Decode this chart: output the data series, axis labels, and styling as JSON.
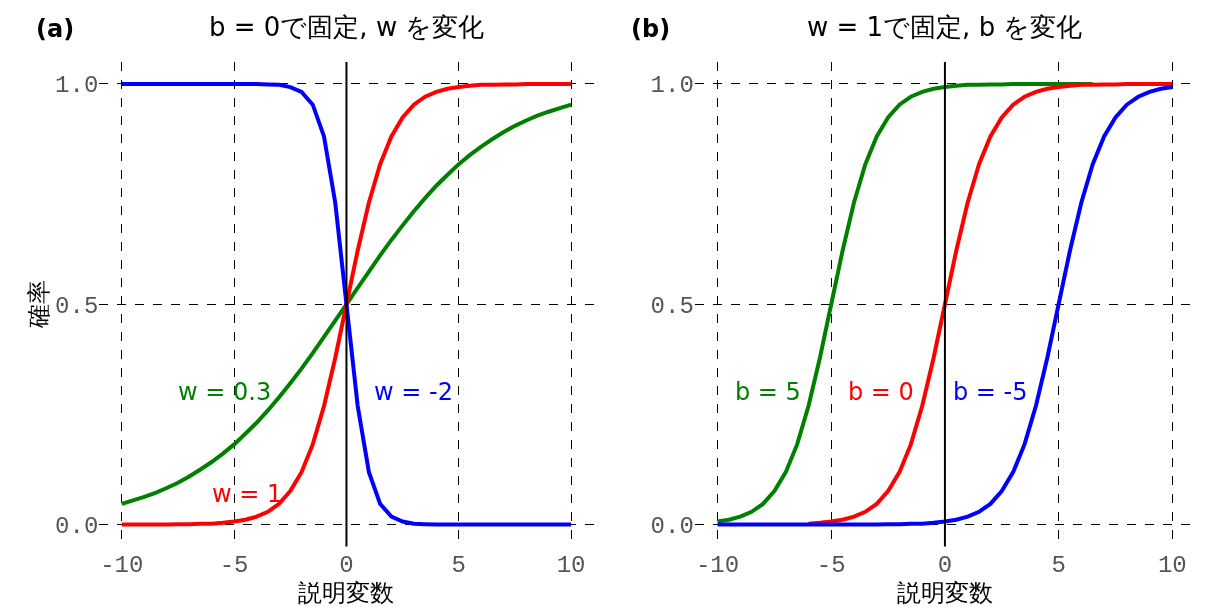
{
  "chart_data": [
    {
      "type": "line",
      "title": "b = 0で固定, w を変化",
      "xlabel": "説明変数",
      "ylabel": "確率",
      "annotations": [
        "(a)"
      ],
      "x": [
        -10,
        -9.5,
        -9,
        -8.5,
        -8,
        -7.5,
        -7,
        -6.5,
        -6,
        -5.5,
        -5,
        -4.5,
        -4,
        -3.5,
        -3,
        -2.5,
        -2,
        -1.5,
        -1,
        -0.5,
        0,
        0.5,
        1,
        1.5,
        2,
        2.5,
        3,
        3.5,
        4,
        4.5,
        5,
        5.5,
        6,
        6.5,
        7,
        7.5,
        8,
        8.5,
        9,
        9.5,
        10
      ],
      "series": [
        {
          "name": "w = 0.3",
          "color": "#008000",
          "values": [
            0.047,
            0.055,
            0.063,
            0.072,
            0.083,
            0.095,
            0.109,
            0.125,
            0.142,
            0.161,
            0.182,
            0.206,
            0.231,
            0.259,
            0.289,
            0.321,
            0.354,
            0.389,
            0.426,
            0.463,
            0.5,
            0.537,
            0.574,
            0.611,
            0.646,
            0.679,
            0.711,
            0.741,
            0.769,
            0.794,
            0.818,
            0.839,
            0.858,
            0.875,
            0.891,
            0.905,
            0.917,
            0.928,
            0.937,
            0.945,
            0.953
          ]
        },
        {
          "name": "w = 1",
          "color": "#ff0000",
          "values": [
            0.0,
            0.0,
            0.0,
            0.0,
            0.0,
            0.001,
            0.001,
            0.002,
            0.002,
            0.004,
            0.007,
            0.011,
            0.018,
            0.029,
            0.047,
            0.076,
            0.119,
            0.182,
            0.269,
            0.378,
            0.5,
            0.622,
            0.731,
            0.818,
            0.881,
            0.924,
            0.953,
            0.971,
            0.982,
            0.989,
            0.993,
            0.996,
            0.998,
            0.998,
            0.999,
            0.999,
            1.0,
            1.0,
            1.0,
            1.0,
            1.0
          ]
        },
        {
          "name": "w = -2",
          "color": "#0000ff",
          "values": [
            1.0,
            1.0,
            1.0,
            1.0,
            1.0,
            1.0,
            1.0,
            1.0,
            1.0,
            1.0,
            1.0,
            1.0,
            1.0,
            0.999,
            0.998,
            0.993,
            0.982,
            0.953,
            0.881,
            0.731,
            0.5,
            0.269,
            0.119,
            0.047,
            0.018,
            0.007,
            0.002,
            0.001,
            0.0,
            0.0,
            0.0,
            0.0,
            0.0,
            0.0,
            0.0,
            0.0,
            0.0,
            0.0,
            0.0,
            0.0,
            0.0
          ]
        }
      ],
      "xlim": [
        -11,
        11
      ],
      "ylim": [
        -0.05,
        1.05
      ],
      "xticks": [
        -10,
        -5,
        0,
        5,
        10
      ],
      "yticks": [
        {
          "value": 0,
          "label": "0.0"
        },
        {
          "value": 0.5,
          "label": "0.5"
        },
        {
          "value": 1,
          "label": "1.0"
        }
      ],
      "grid": true,
      "line_style": "solid",
      "ref_lines": [
        {
          "axis": "x",
          "value": 0,
          "color": "#000000"
        }
      ]
    },
    {
      "type": "line",
      "title": "w = 1で固定, b を変化",
      "xlabel": "説明変数",
      "annotations": [
        "(b)"
      ],
      "x": [
        -10,
        -9.5,
        -9,
        -8.5,
        -8,
        -7.5,
        -7,
        -6.5,
        -6,
        -5.5,
        -5,
        -4.5,
        -4,
        -3.5,
        -3,
        -2.5,
        -2,
        -1.5,
        -1,
        -0.5,
        0,
        0.5,
        1,
        1.5,
        2,
        2.5,
        3,
        3.5,
        4,
        4.5,
        5,
        5.5,
        6,
        6.5,
        7,
        7.5,
        8,
        8.5,
        9,
        9.5,
        10
      ],
      "series": [
        {
          "name": "b = 5",
          "color": "#008000",
          "values": [
            0.007,
            0.011,
            0.018,
            0.029,
            0.047,
            0.076,
            0.119,
            0.182,
            0.269,
            0.378,
            0.5,
            0.622,
            0.731,
            0.818,
            0.881,
            0.924,
            0.953,
            0.971,
            0.982,
            0.989,
            0.993,
            0.996,
            0.998,
            0.998,
            0.999,
            0.999,
            1.0,
            1.0,
            1.0,
            1.0,
            1.0,
            1.0,
            1.0,
            1.0,
            null,
            null,
            null,
            null,
            null,
            null,
            null
          ]
        },
        {
          "name": "b = 0",
          "color": "#ff0000",
          "values": [
            null,
            null,
            null,
            null,
            null,
            null,
            null,
            null,
            0.002,
            0.004,
            0.007,
            0.011,
            0.018,
            0.029,
            0.047,
            0.076,
            0.119,
            0.182,
            0.269,
            0.378,
            0.5,
            0.622,
            0.731,
            0.818,
            0.881,
            0.924,
            0.953,
            0.971,
            0.982,
            0.989,
            0.993,
            0.996,
            0.998,
            0.998,
            0.999,
            0.999,
            1.0,
            1.0,
            1.0,
            1.0,
            1.0
          ]
        },
        {
          "name": "b = -5",
          "color": "#0000ff",
          "values": [
            0.0,
            0.0,
            0.0,
            0.0,
            0.0,
            0.0,
            0.0,
            0.0,
            0.0,
            0.0,
            0.0,
            0.0,
            0.0,
            0.0,
            0.0,
            0.001,
            0.001,
            0.002,
            0.002,
            0.004,
            0.007,
            0.011,
            0.018,
            0.029,
            0.047,
            0.076,
            0.119,
            0.182,
            0.269,
            0.378,
            0.5,
            0.622,
            0.731,
            0.818,
            0.881,
            0.924,
            0.953,
            0.971,
            0.982,
            0.989,
            0.993
          ]
        }
      ],
      "xlim": [
        -11,
        11
      ],
      "ylim": [
        -0.05,
        1.05
      ],
      "xticks": [
        -10,
        -5,
        0,
        5,
        10
      ],
      "yticks": [
        {
          "value": 0,
          "label": "0.0"
        },
        {
          "value": 0.5,
          "label": "0.5"
        },
        {
          "value": 1,
          "label": "1.0"
        }
      ],
      "grid": true,
      "line_style": "solid",
      "ref_lines": [
        {
          "axis": "x",
          "value": 0,
          "color": "#000000"
        }
      ]
    }
  ]
}
